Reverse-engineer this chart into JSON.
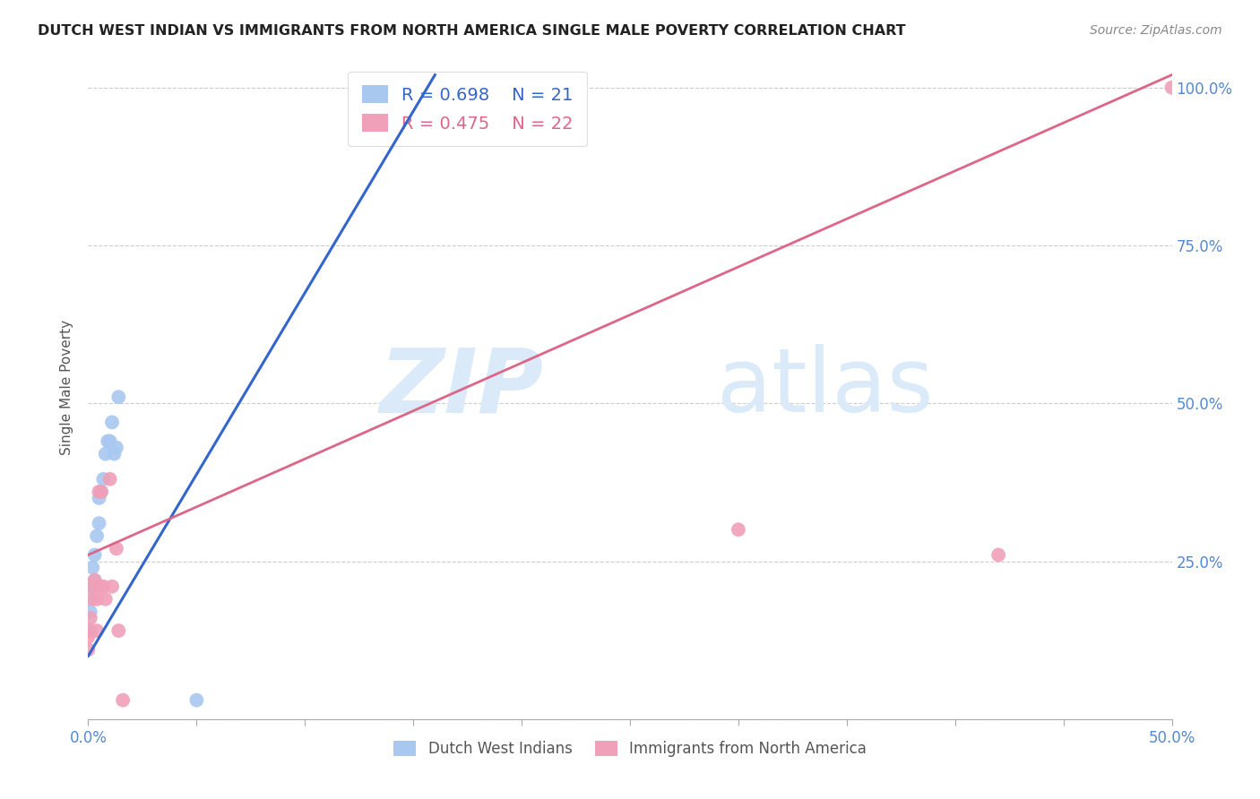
{
  "title": "DUTCH WEST INDIAN VS IMMIGRANTS FROM NORTH AMERICA SINGLE MALE POVERTY CORRELATION CHART",
  "source": "Source: ZipAtlas.com",
  "ylabel": "Single Male Poverty",
  "xlim": [
    0.0,
    0.5
  ],
  "ylim": [
    0.0,
    1.05
  ],
  "xticks": [
    0.0,
    0.05,
    0.1,
    0.15,
    0.2,
    0.25,
    0.3,
    0.35,
    0.4,
    0.45,
    0.5
  ],
  "xticklabels_show": [
    "0.0%",
    "50.0%"
  ],
  "yticks_right": [
    0.25,
    0.5,
    0.75,
    1.0
  ],
  "yticklabels_right": [
    "25.0%",
    "50.0%",
    "75.0%",
    "100.0%"
  ],
  "blue_R": 0.698,
  "blue_N": 21,
  "pink_R": 0.475,
  "pink_N": 22,
  "blue_color": "#a8c8f0",
  "pink_color": "#f0a0b8",
  "blue_line_color": "#3366cc",
  "pink_line_color": "#dd6688",
  "watermark_zip": "ZIP",
  "watermark_atlas": "atlas",
  "watermark_color": "#daeaf8",
  "blue_scatter_x": [
    0.0,
    0.001,
    0.001,
    0.002,
    0.002,
    0.003,
    0.003,
    0.004,
    0.005,
    0.005,
    0.006,
    0.007,
    0.008,
    0.009,
    0.01,
    0.011,
    0.012,
    0.013,
    0.014,
    0.05,
    0.16
  ],
  "blue_scatter_y": [
    0.14,
    0.17,
    0.19,
    0.21,
    0.24,
    0.26,
    0.22,
    0.29,
    0.31,
    0.35,
    0.36,
    0.38,
    0.42,
    0.44,
    0.44,
    0.47,
    0.42,
    0.43,
    0.51,
    0.03,
    1.0
  ],
  "pink_scatter_x": [
    0.0,
    0.0,
    0.001,
    0.001,
    0.002,
    0.002,
    0.003,
    0.004,
    0.004,
    0.005,
    0.005,
    0.006,
    0.007,
    0.008,
    0.01,
    0.011,
    0.013,
    0.014,
    0.016,
    0.3,
    0.42,
    0.5
  ],
  "pink_scatter_y": [
    0.11,
    0.13,
    0.14,
    0.16,
    0.19,
    0.21,
    0.22,
    0.14,
    0.19,
    0.21,
    0.36,
    0.36,
    0.21,
    0.19,
    0.38,
    0.21,
    0.27,
    0.14,
    0.03,
    0.3,
    0.26,
    1.0
  ],
  "blue_line_x0": 0.0,
  "blue_line_x1": 0.16,
  "blue_line_y0": 0.1,
  "blue_line_y1": 1.02,
  "pink_line_x0": 0.0,
  "pink_line_x1": 0.5,
  "pink_line_y0": 0.26,
  "pink_line_y1": 1.02,
  "bottom_legend_blue": "Dutch West Indians",
  "bottom_legend_pink": "Immigrants from North America"
}
